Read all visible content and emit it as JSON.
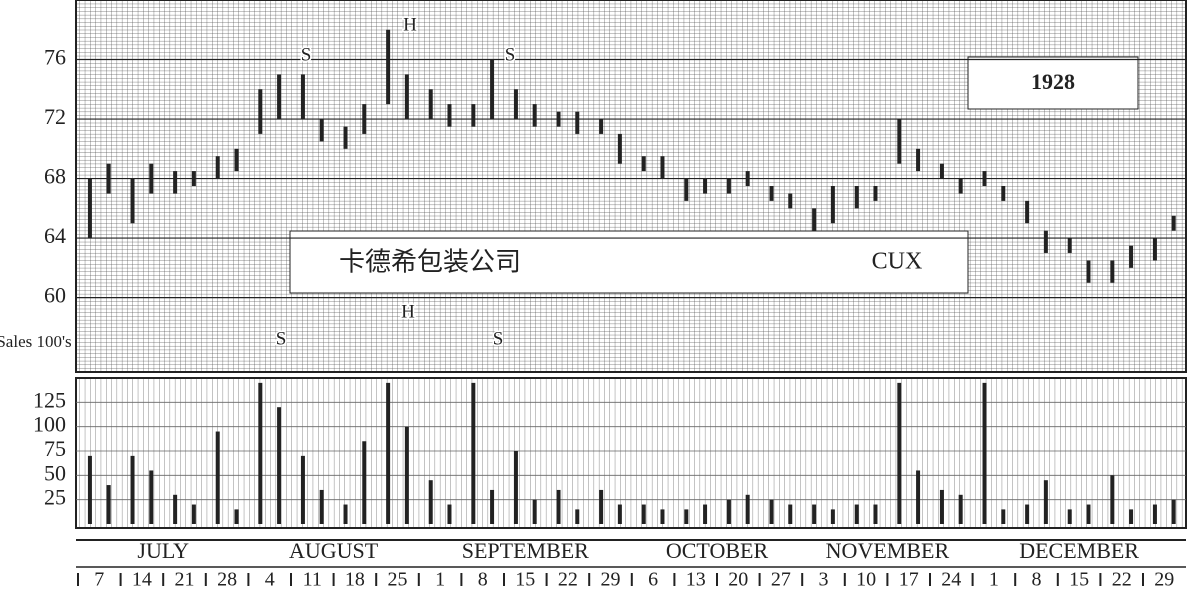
{
  "chart_data": [
    {
      "type": "hilo",
      "title": "1928",
      "company": "卡德希包装公司",
      "ticker": "CUX",
      "high": [
        68,
        69,
        68,
        69,
        68.5,
        68.5,
        69.5,
        70,
        74,
        75,
        75,
        72,
        71.5,
        73,
        78,
        75,
        74,
        73,
        73,
        76,
        74,
        73,
        72.5,
        72.5,
        72,
        71,
        69.5,
        69.5,
        68,
        68,
        68,
        68.5,
        67.5,
        67,
        66,
        67.5,
        67.5,
        67.5,
        72,
        70,
        69,
        68,
        68.5,
        67.5,
        66.5,
        64.5,
        64,
        62.5,
        62.5,
        63.5,
        64,
        65.5
      ],
      "low": [
        64,
        67,
        65,
        67,
        67,
        67.5,
        68,
        68.5,
        71,
        72,
        72,
        70.5,
        70,
        71,
        73,
        72,
        72,
        71.5,
        71.5,
        72,
        72,
        71.5,
        71.5,
        71,
        71,
        69,
        68.5,
        68,
        66.5,
        67,
        67,
        67.5,
        66.5,
        66,
        64.5,
        65,
        66,
        66.5,
        69,
        68.5,
        68,
        67,
        67.5,
        66.5,
        65,
        63,
        63,
        61,
        61,
        62,
        62.5,
        64.5
      ],
      "ylim": [
        55,
        80
      ],
      "yticks": [
        60,
        64,
        68,
        72,
        76
      ],
      "annotations": [
        "S",
        "H",
        "S"
      ],
      "grid": true,
      "color": "#222222"
    },
    {
      "type": "bar",
      "ylabel": "Sales 100's",
      "values": [
        70,
        40,
        70,
        55,
        30,
        20,
        95,
        15,
        145,
        120,
        70,
        35,
        20,
        85,
        145,
        100,
        45,
        20,
        145,
        35,
        75,
        25,
        35,
        15,
        35,
        20,
        20,
        15,
        15,
        20,
        25,
        30,
        25,
        20,
        20,
        15,
        20,
        20,
        145,
        55,
        35,
        30,
        145,
        15,
        20,
        45,
        15,
        20,
        50,
        15,
        20,
        25
      ],
      "ylim": [
        0,
        150
      ],
      "yticks": [
        25,
        50,
        75,
        100,
        125
      ],
      "annotations": [
        "S",
        "H",
        "S"
      ],
      "grid": true,
      "color": "#222222",
      "months": [
        "JULY",
        "AUGUST",
        "SEPTEMBER",
        "OCTOBER",
        "NOVEMBER",
        "DECEMBER"
      ],
      "weeks": [
        "7",
        "14",
        "21",
        "28",
        "4",
        "11",
        "18",
        "25",
        "1",
        "8",
        "15",
        "22",
        "29",
        "6",
        "13",
        "20",
        "27",
        "3",
        "10",
        "17",
        "24",
        "1",
        "8",
        "15",
        "22",
        "29"
      ]
    }
  ]
}
